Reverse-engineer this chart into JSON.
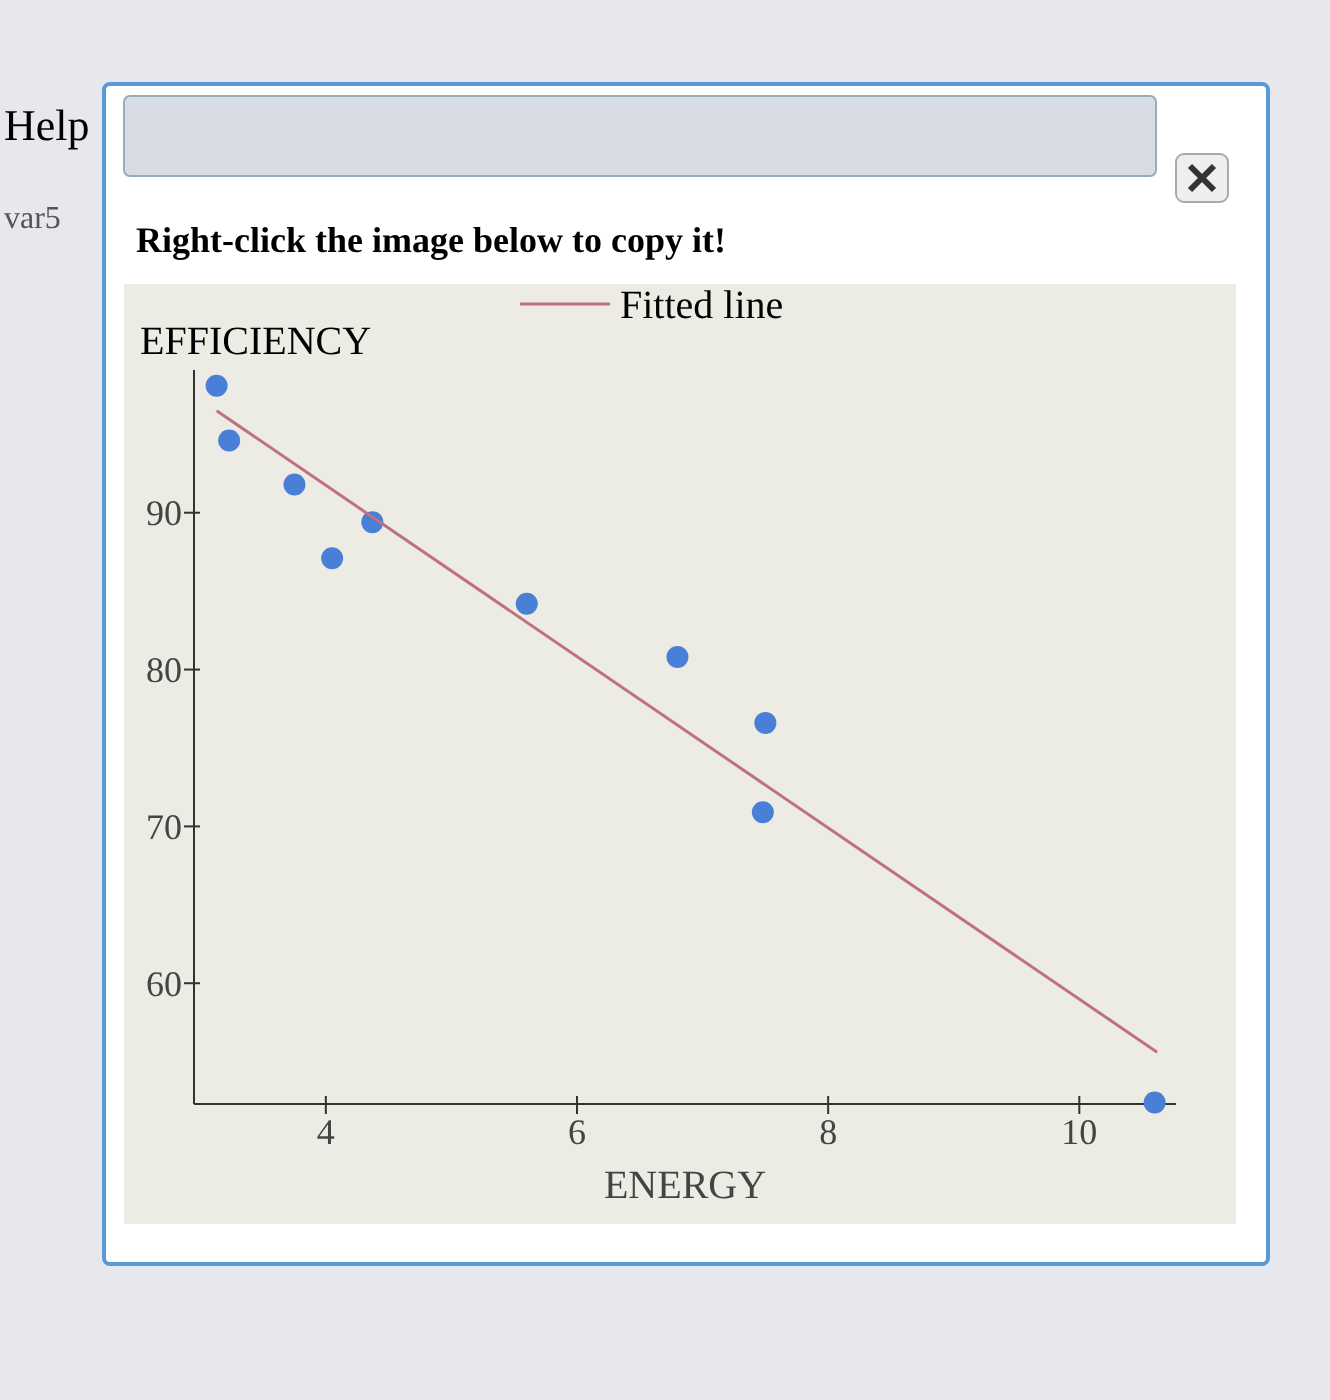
{
  "chart_data": {
    "type": "scatter",
    "title": "Right-click the image below to copy it!",
    "xlabel": "ENERGY",
    "ylabel": "EFFICIENCY",
    "annotations": [
      "Help",
      "var5"
    ],
    "xlim": [
      2.95,
      10.77
    ],
    "ylim": [
      52.3,
      99.1
    ],
    "xticks": [
      4,
      6,
      8,
      10
    ],
    "yticks": [
      60,
      70,
      80,
      90
    ],
    "grid": false,
    "legend": "top right",
    "marker": "circle",
    "series": [
      {
        "color": "#4a7fd8",
        "x": [
          3.13,
          3.23,
          3.75,
          4.05,
          4.37,
          5.6,
          6.8,
          7.5,
          7.48,
          10.6
        ],
        "values": [
          98.1,
          94.6,
          91.8,
          87.1,
          89.4,
          84.2,
          80.8,
          76.6,
          70.9,
          52.4
        ]
      },
      {
        "type": "line",
        "name": "Fitted line",
        "color": "#c07080",
        "x": [
          3.13,
          10.62
        ],
        "values": [
          96.5,
          55.6
        ],
        "marker": "none",
        "line_style": "solid"
      }
    ]
  }
}
